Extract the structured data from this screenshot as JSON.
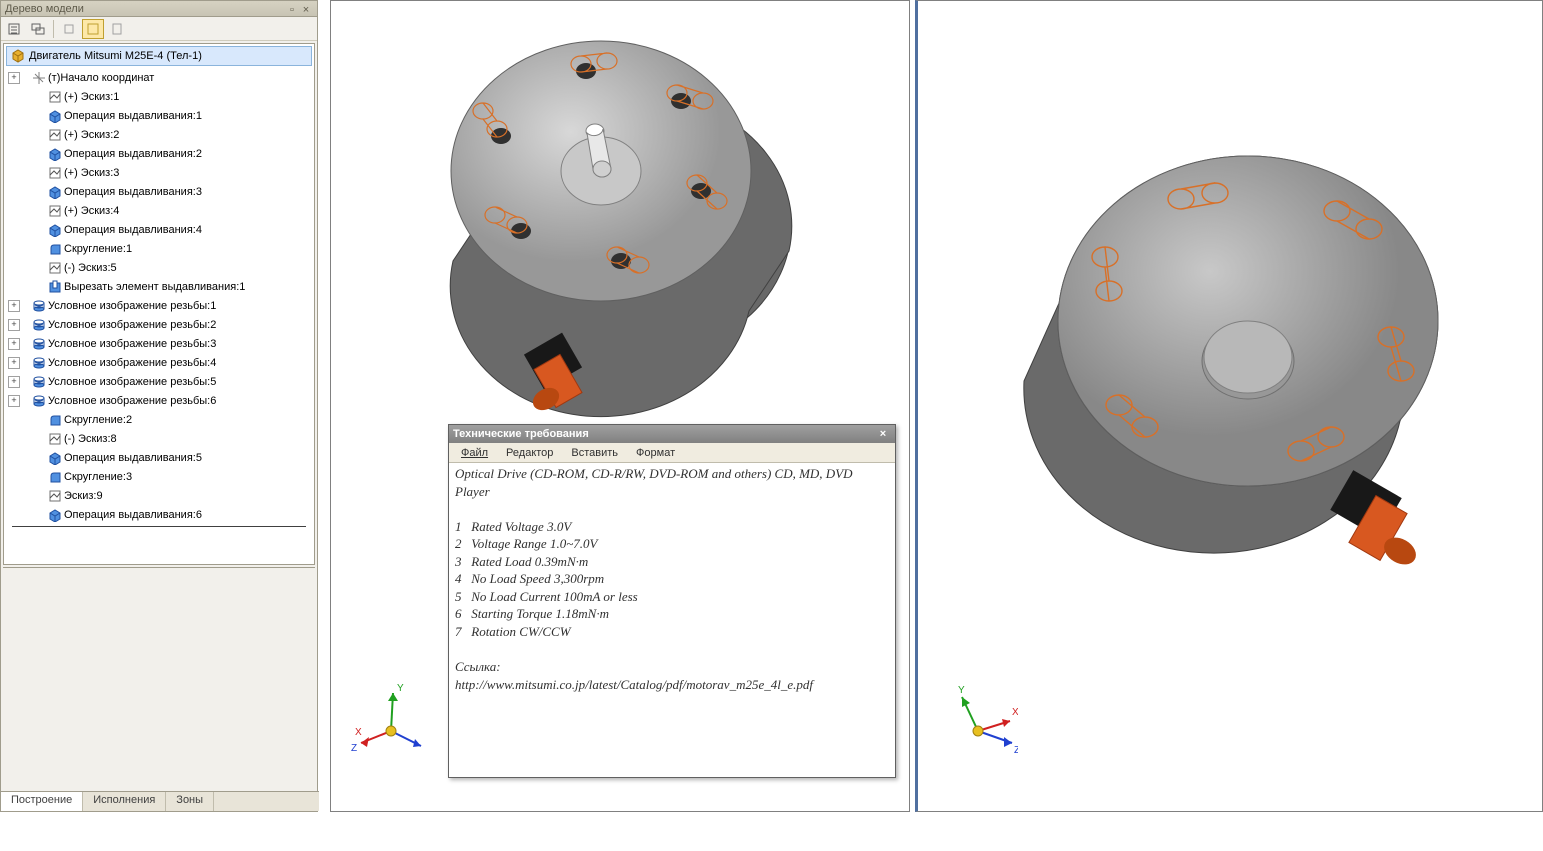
{
  "panel": {
    "title": "Дерево модели",
    "root": "Двигатель Mitsumi M25E-4 (Тел-1)",
    "items": [
      {
        "exp": "+",
        "indent": 0,
        "icon": "origin",
        "label": "(т)Начало координат"
      },
      {
        "exp": "",
        "indent": 1,
        "icon": "sketch",
        "label": "(+) Эскиз:1"
      },
      {
        "exp": "",
        "indent": 1,
        "icon": "extrude",
        "label": "Операция выдавливания:1"
      },
      {
        "exp": "",
        "indent": 1,
        "icon": "sketch",
        "label": "(+) Эскиз:2"
      },
      {
        "exp": "",
        "indent": 1,
        "icon": "extrude",
        "label": "Операция выдавливания:2"
      },
      {
        "exp": "",
        "indent": 1,
        "icon": "sketch",
        "label": "(+) Эскиз:3"
      },
      {
        "exp": "",
        "indent": 1,
        "icon": "extrude",
        "label": "Операция выдавливания:3"
      },
      {
        "exp": "",
        "indent": 1,
        "icon": "sketch",
        "label": "(+) Эскиз:4"
      },
      {
        "exp": "",
        "indent": 1,
        "icon": "extrude",
        "label": "Операция выдавливания:4"
      },
      {
        "exp": "",
        "indent": 1,
        "icon": "fillet",
        "label": "Скругление:1"
      },
      {
        "exp": "",
        "indent": 1,
        "icon": "sketch",
        "label": "(-) Эскиз:5"
      },
      {
        "exp": "",
        "indent": 1,
        "icon": "cut",
        "label": "Вырезать элемент выдавливания:1"
      },
      {
        "exp": "+",
        "indent": 0,
        "icon": "thread",
        "label": "Условное изображение резьбы:1"
      },
      {
        "exp": "+",
        "indent": 0,
        "icon": "thread",
        "label": "Условное изображение резьбы:2"
      },
      {
        "exp": "+",
        "indent": 0,
        "icon": "thread",
        "label": "Условное изображение резьбы:3"
      },
      {
        "exp": "+",
        "indent": 0,
        "icon": "thread",
        "label": "Условное изображение резьбы:4"
      },
      {
        "exp": "+",
        "indent": 0,
        "icon": "thread",
        "label": "Условное изображение резьбы:5"
      },
      {
        "exp": "+",
        "indent": 0,
        "icon": "thread",
        "label": "Условное изображение резьбы:6"
      },
      {
        "exp": "",
        "indent": 1,
        "icon": "fillet",
        "label": "Скругление:2"
      },
      {
        "exp": "",
        "indent": 1,
        "icon": "sketch",
        "label": "(-) Эскиз:8"
      },
      {
        "exp": "",
        "indent": 1,
        "icon": "extrude",
        "label": "Операция выдавливания:5"
      },
      {
        "exp": "",
        "indent": 1,
        "icon": "fillet",
        "label": "Скругление:3"
      },
      {
        "exp": "",
        "indent": 1,
        "icon": "sketch",
        "label": "Эскиз:9"
      },
      {
        "exp": "",
        "indent": 1,
        "icon": "extrude",
        "label": "Операция выдавливания:6"
      }
    ],
    "tabs": [
      "Построение",
      "Исполнения",
      "Зоны"
    ]
  },
  "tech": {
    "title": "Технические требования",
    "menu": [
      "Файл",
      "Редактор",
      "Вставить",
      "Формат"
    ],
    "body": "Optical Drive (CD-ROM, CD-R/RW, DVD-ROM and others) CD, MD, DVD Player\n\n1   Rated Voltage 3.0V\n2   Voltage Range 1.0~7.0V\n3   Rated Load 0.39mN·m\n4   No Load Speed 3,300rpm\n5   No Load Current 100mA or less\n6   Starting Torque 1.18mN·m\n7   Rotation CW/CCW\n\nСсылка:\nhttp://www.mitsumi.co.jp/latest/Catalog/pdf/motorav_m25e_4l_e.pdf"
  },
  "motor": {
    "body_fill": "#888888",
    "body_edge": "#404040",
    "face_fill": "#b4b4b4",
    "face_edge": "#606060",
    "hole_fill": "#303030",
    "shaft_fill": "#e8e8e8",
    "slot_stroke": "#d87028",
    "connector_black": "#181818",
    "connector_orange": "#d85820"
  },
  "axis": {
    "x_color": "#d02020",
    "y_color": "#20a020",
    "z_color": "#2040d0",
    "origin": "#e8c020"
  }
}
